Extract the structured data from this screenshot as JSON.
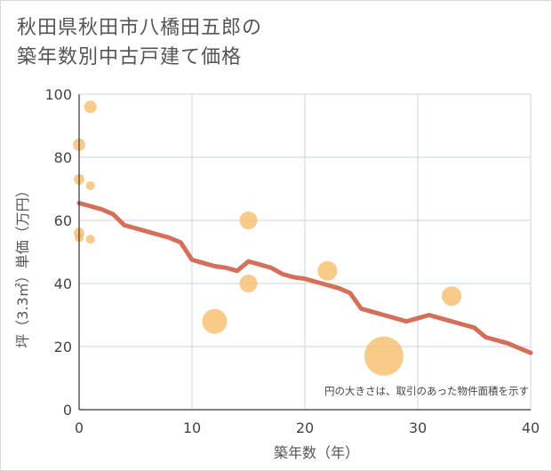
{
  "title_lines": [
    "秋田県秋田市八橋田五郎の",
    "築年数別中古戸建て価格"
  ],
  "chart_data": {
    "type": "scatter",
    "title": "秋田県秋田市八橋田五郎の築年数別中古戸建て価格",
    "xlabel": "築年数（年）",
    "ylabel": "坪（3.3㎡）単価（万円）",
    "xlim": [
      0,
      40
    ],
    "ylim": [
      0,
      100
    ],
    "xticks": [
      "0",
      "10",
      "20",
      "30",
      "40"
    ],
    "yticks": [
      "0",
      "20",
      "40",
      "60",
      "80",
      "100"
    ],
    "grid": true,
    "annotation": "円の大きさは、取引のあった物件面積を示す",
    "colors": {
      "bubble": "#f5b961",
      "trend": "#d4705a",
      "grid": "#c9d6e2"
    },
    "bubbles": [
      {
        "x": 0,
        "y": 84,
        "r": 7
      },
      {
        "x": 0,
        "y": 73,
        "r": 6
      },
      {
        "x": 0,
        "y": 56,
        "r": 6
      },
      {
        "x": 0,
        "y": 54.5,
        "r": 5
      },
      {
        "x": 1,
        "y": 96,
        "r": 7
      },
      {
        "x": 1,
        "y": 71,
        "r": 5
      },
      {
        "x": 1,
        "y": 54,
        "r": 5
      },
      {
        "x": 12,
        "y": 28,
        "r": 14
      },
      {
        "x": 15,
        "y": 60,
        "r": 10
      },
      {
        "x": 15,
        "y": 40,
        "r": 10
      },
      {
        "x": 22,
        "y": 44,
        "r": 11
      },
      {
        "x": 27,
        "y": 17,
        "r": 22
      },
      {
        "x": 33,
        "y": 36,
        "r": 11
      }
    ],
    "trend": {
      "x": [
        0,
        1,
        2,
        3,
        4,
        5,
        6,
        7,
        8,
        9,
        10,
        11,
        12,
        13,
        14,
        15,
        16,
        17,
        18,
        19,
        20,
        21,
        22,
        23,
        24,
        25,
        26,
        27,
        28,
        29,
        30,
        31,
        32,
        33,
        34,
        35,
        36,
        37,
        38,
        39,
        40
      ],
      "y": [
        65.5,
        64.5,
        63.5,
        62,
        58.5,
        57.5,
        56.5,
        55.5,
        54.5,
        53,
        47.5,
        46.5,
        45.5,
        45,
        44,
        47,
        46,
        45,
        43,
        42,
        41.5,
        40.5,
        39.5,
        38.5,
        37,
        32,
        31,
        30,
        29,
        28,
        29,
        30,
        29,
        28,
        27,
        26,
        23,
        22,
        21,
        19.5,
        18
      ]
    }
  }
}
